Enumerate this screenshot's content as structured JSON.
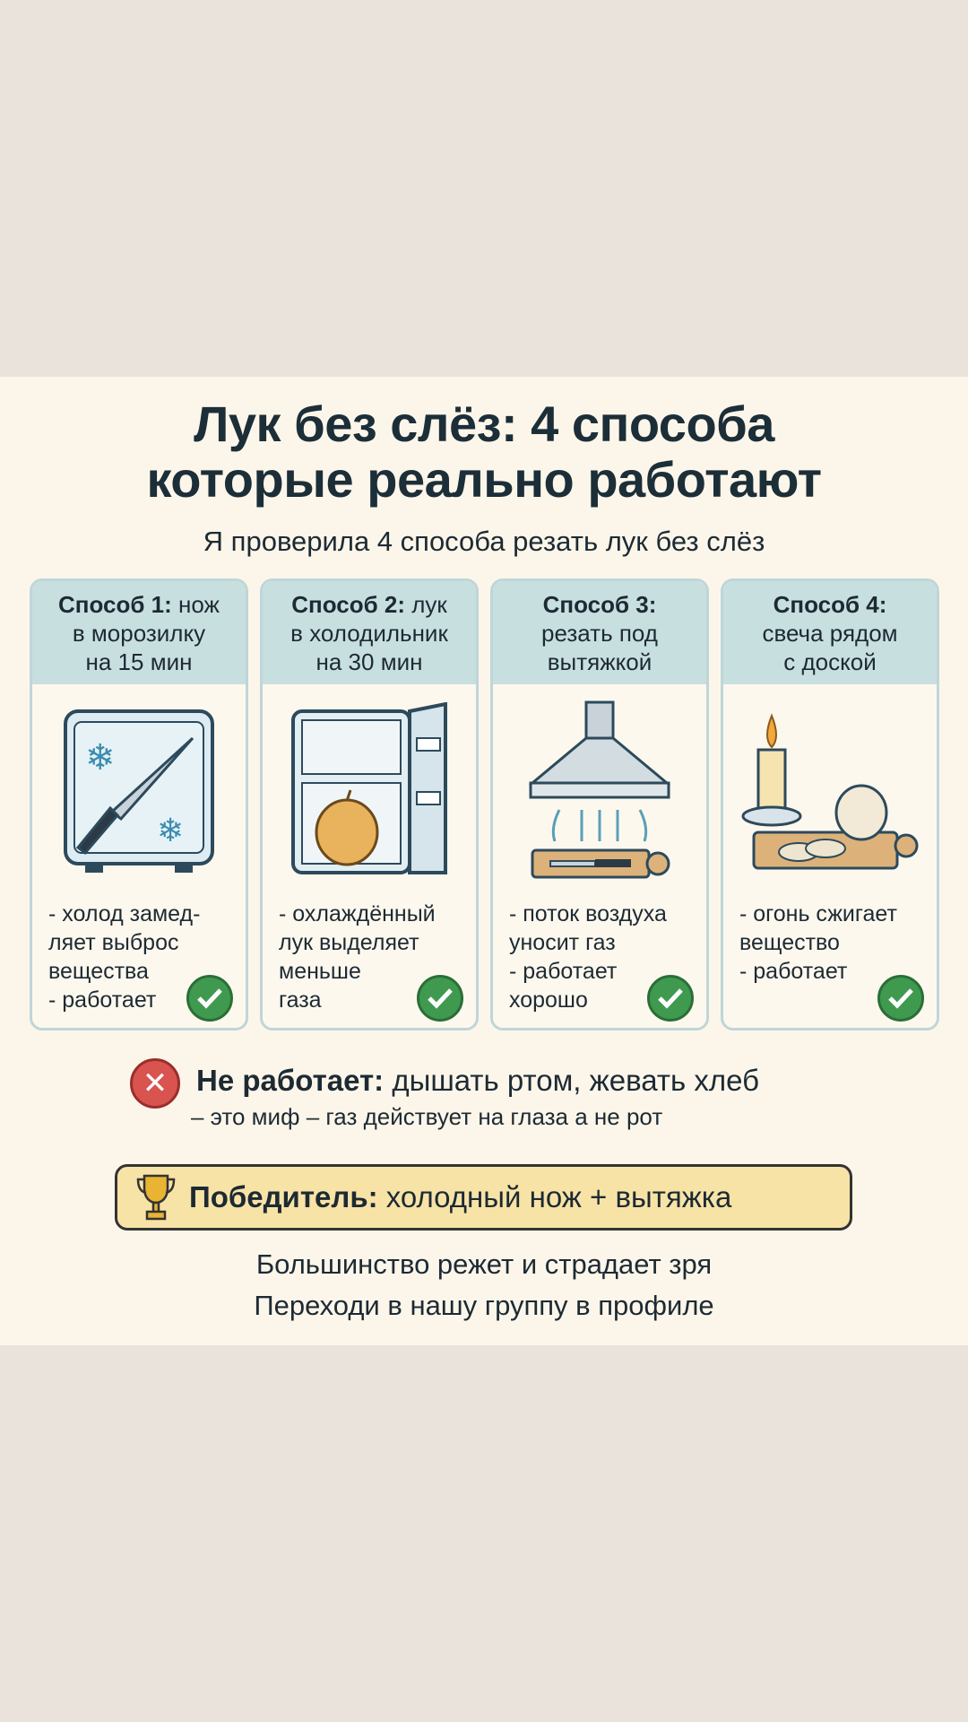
{
  "title": {
    "line1": "Лук без слёз: 4 способа",
    "line2": "которые реально работают"
  },
  "subtitle": "Я проверила 4 способа резать лук без слёз",
  "cards": [
    {
      "label": "Способ 1:",
      "rest": " нож",
      "line2": "в морозилку",
      "line3": "на 15 мин",
      "illustration": "freezer-knife",
      "bullets": [
        "- холод замед-",
        "ляет выброс",
        "вещества",
        "- работает"
      ],
      "status": "check-icon"
    },
    {
      "label": "Способ 2:",
      "rest": " лук",
      "line2": "в холодильник",
      "line3": "на 30 мин",
      "illustration": "fridge-onion",
      "bullets": [
        "- охлаждённый",
        "лук выделяет",
        "меньше",
        "газа"
      ],
      "status": "check-icon"
    },
    {
      "label": "Способ 3:",
      "rest": "",
      "line2": "резать под",
      "line3": "вытяжкой",
      "illustration": "range-hood",
      "bullets": [
        "- поток воздуха",
        "уносит газ",
        "- работает",
        "хорошо"
      ],
      "status": "check-icon"
    },
    {
      "label": "Способ 4:",
      "rest": "",
      "line2": "свеча рядом",
      "line3": "с доской",
      "illustration": "candle-board",
      "bullets": [
        "- огонь сжигает",
        "вещество",
        "- работает",
        ""
      ],
      "status": "check-icon"
    }
  ],
  "not_working": {
    "label": "Не работает:",
    "text": " дышать ртом, жевать хлеб",
    "note": "– это миф – газ действует на глаза а не рот"
  },
  "winner": {
    "label": "Победитель:",
    "text": " холодный нож + вытяжка"
  },
  "footer": {
    "line1": "Большинство режет и страдает зря",
    "line2": "Переходи в нашу группу в профиле"
  },
  "colors": {
    "panel": "#fcf6ea",
    "card_head": "#c8dfe0",
    "check": "#3f9a4f",
    "cross": "#d9534f",
    "winner": "#f8e3a6"
  }
}
